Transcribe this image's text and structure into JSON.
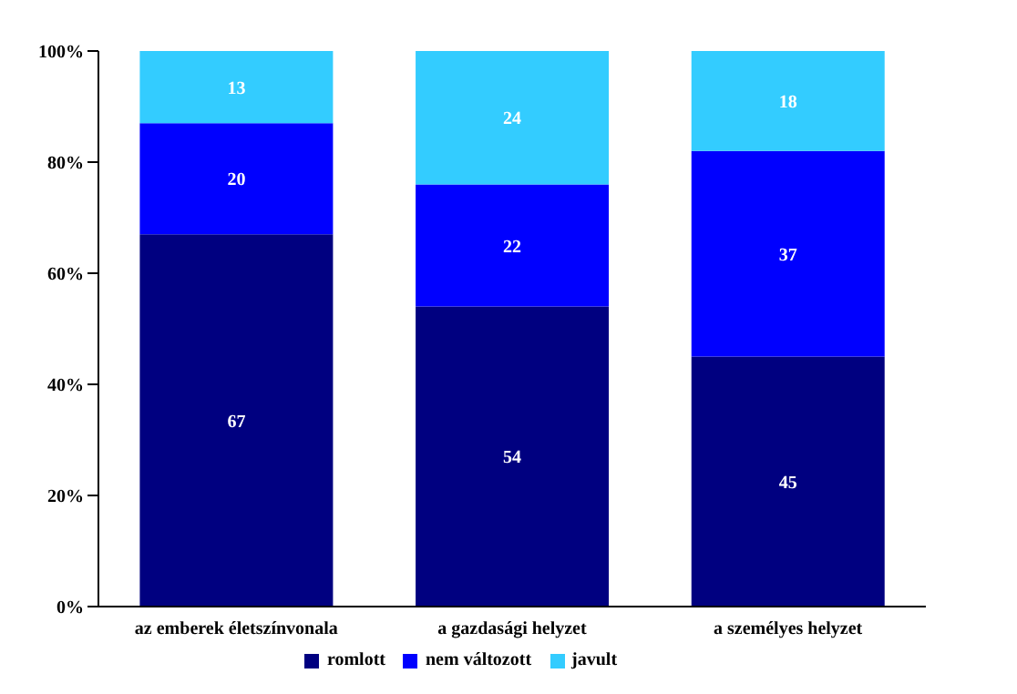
{
  "chart_data": {
    "type": "bar",
    "stacked": true,
    "categories": [
      "az emberek életszínvonala",
      "a gazdasági helyzet",
      "a személyes helyzet"
    ],
    "series": [
      {
        "name": "romlott",
        "color": "#000080",
        "values": [
          67,
          54,
          45
        ]
      },
      {
        "name": "nem változott",
        "color": "#0000ff",
        "values": [
          20,
          22,
          37
        ]
      },
      {
        "name": "javult",
        "color": "#33ccff",
        "values": [
          13,
          24,
          18
        ]
      }
    ],
    "ylim": [
      0,
      100
    ],
    "yticks": [
      {
        "value": 0,
        "label": "0%"
      },
      {
        "value": 20,
        "label": "20%"
      },
      {
        "value": 40,
        "label": "40%"
      },
      {
        "value": 60,
        "label": "60%"
      },
      {
        "value": 80,
        "label": "80%"
      },
      {
        "value": 100,
        "label": "100%"
      }
    ],
    "data_labels": true,
    "legend": "bottom"
  }
}
